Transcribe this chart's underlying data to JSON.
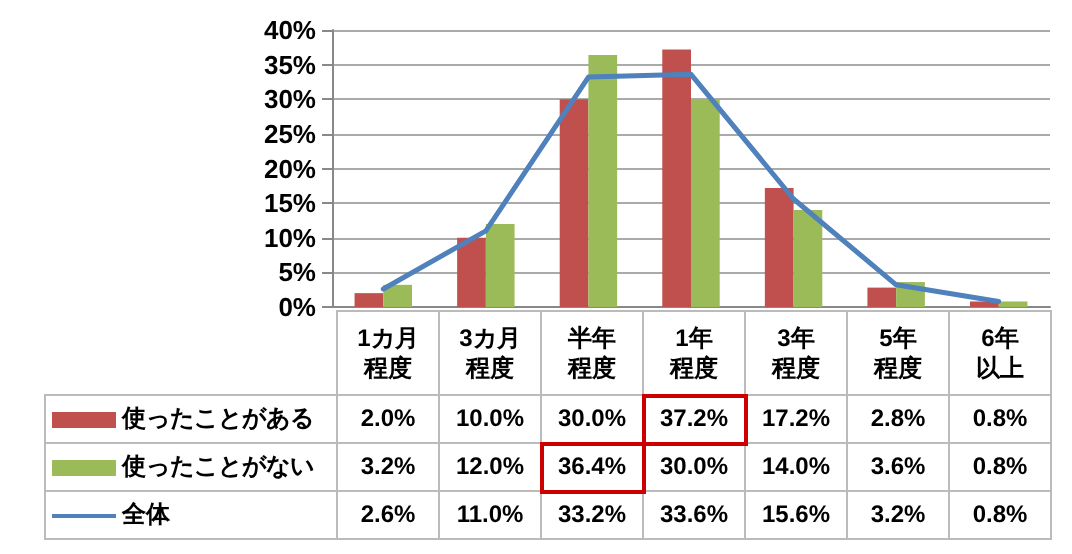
{
  "chart_data": {
    "type": "bar",
    "categories": [
      "1カ月程度",
      "3カ月程度",
      "半年程度",
      "1年程度",
      "3年程度",
      "5年程度",
      "6年以上"
    ],
    "series": [
      {
        "name": "使ったことがある",
        "color": "#c0504d",
        "values": [
          2.0,
          10.0,
          30.0,
          37.2,
          17.2,
          2.8,
          0.8
        ],
        "value_labels": [
          "2.0%",
          "10.0%",
          "30.0%",
          "37.2%",
          "17.2%",
          "2.8%",
          "0.8%"
        ]
      },
      {
        "name": "使ったことがない",
        "color": "#9bbb59",
        "values": [
          3.2,
          12.0,
          36.4,
          30.0,
          14.0,
          3.6,
          0.8
        ],
        "value_labels": [
          "3.2%",
          "12.0%",
          "36.4%",
          "30.0%",
          "14.0%",
          "3.6%",
          "0.8%"
        ]
      },
      {
        "name": "全体",
        "type": "line",
        "color": "#4f81bd",
        "marker": "none",
        "values": [
          2.6,
          11.0,
          33.2,
          33.6,
          15.6,
          3.2,
          0.8
        ],
        "value_labels": [
          "2.6%",
          "11.0%",
          "33.2%",
          "33.6%",
          "15.6%",
          "3.2%",
          "0.8%"
        ]
      }
    ],
    "ylim": [
      0,
      40
    ],
    "yticks": [
      {
        "value": 0,
        "label": "0%"
      },
      {
        "value": 5,
        "label": "5%"
      },
      {
        "value": 10,
        "label": "10%"
      },
      {
        "value": 15,
        "label": "15%"
      },
      {
        "value": 20,
        "label": "20%"
      },
      {
        "value": 25,
        "label": "25%"
      },
      {
        "value": 30,
        "label": "30%"
      },
      {
        "value": 35,
        "label": "35%"
      },
      {
        "value": 40,
        "label": "40%"
      }
    ],
    "grid": "y",
    "legend": "bottom left"
  }
}
